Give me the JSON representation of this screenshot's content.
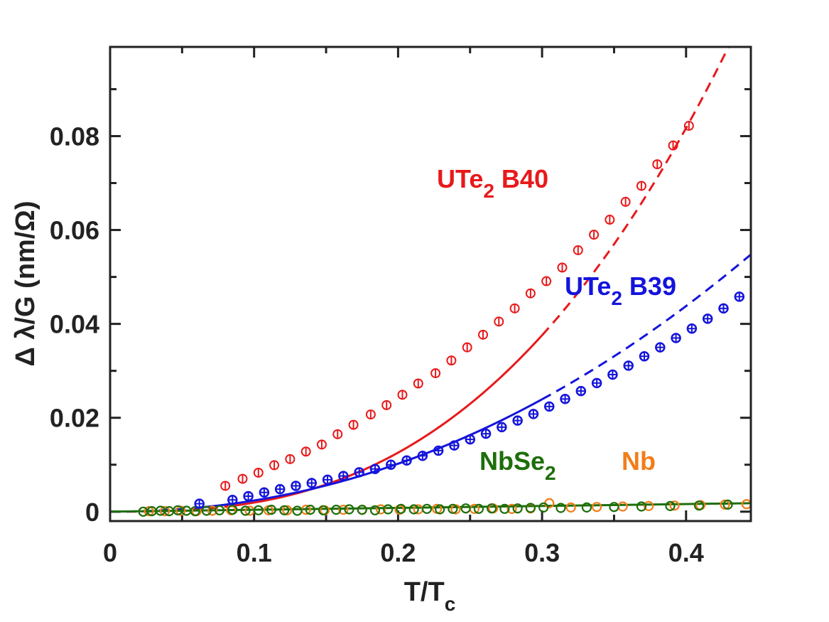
{
  "chart_data": {
    "type": "scatter",
    "title": "",
    "xlabel": {
      "main": "T/T",
      "sub": "c"
    },
    "ylabel": "Δ λ/G (nm/Ω)",
    "xlim": [
      0,
      0.445
    ],
    "ylim": [
      -0.002,
      0.099
    ],
    "xticks": [
      0,
      0.1,
      0.2,
      0.3,
      0.4
    ],
    "xtick_labels": [
      "0",
      "0.1",
      "0.2",
      "0.3",
      "0.4"
    ],
    "yticks": [
      0,
      0.02,
      0.04,
      0.06,
      0.08
    ],
    "ytick_labels": [
      "0",
      "0.02",
      "0.04",
      "0.06",
      "0.08"
    ],
    "grid": false,
    "series": [
      {
        "name": "UTe2 B40",
        "label_main": "UTe",
        "label_sub": "2",
        "label_tail": " B40",
        "color": "#e8191b",
        "marker": "open-circle-errorbar",
        "fit": {
          "type": "power-law",
          "a": 0.97,
          "n": 2.7,
          "style": "dashed"
        },
        "x": [
          0.08,
          0.092,
          0.103,
          0.114,
          0.125,
          0.136,
          0.147,
          0.158,
          0.169,
          0.181,
          0.192,
          0.203,
          0.214,
          0.226,
          0.237,
          0.248,
          0.259,
          0.27,
          0.281,
          0.292,
          0.303,
          0.314,
          0.325,
          0.336,
          0.347,
          0.358,
          0.369,
          0.38,
          0.391,
          0.402
        ],
        "y": [
          0.0055,
          0.007,
          0.0083,
          0.0099,
          0.0112,
          0.0128,
          0.0143,
          0.0165,
          0.0185,
          0.0207,
          0.0227,
          0.0249,
          0.0273,
          0.0295,
          0.0322,
          0.035,
          0.0377,
          0.0405,
          0.0433,
          0.0465,
          0.0491,
          0.052,
          0.0557,
          0.059,
          0.0622,
          0.066,
          0.0694,
          0.074,
          0.078,
          0.0822
        ],
        "err": 0.0008
      },
      {
        "name": "UTe2 B39",
        "label_main": "UTe",
        "label_sub": "2",
        "label_tail": " B39",
        "color": "#1414dc",
        "marker": "open-circle-cross",
        "fit": {
          "type": "power-law",
          "a": 0.3,
          "n": 2.1,
          "style": "solid-then-dashed"
        },
        "x": [
          0.062,
          0.085,
          0.096,
          0.107,
          0.118,
          0.129,
          0.14,
          0.151,
          0.162,
          0.173,
          0.184,
          0.195,
          0.206,
          0.217,
          0.228,
          0.239,
          0.25,
          0.261,
          0.272,
          0.283,
          0.294,
          0.305,
          0.316,
          0.327,
          0.338,
          0.349,
          0.36,
          0.371,
          0.382,
          0.393,
          0.404,
          0.415,
          0.426,
          0.437
        ],
        "y": [
          0.0017,
          0.0025,
          0.0033,
          0.0041,
          0.0048,
          0.0055,
          0.0061,
          0.0068,
          0.0076,
          0.0084,
          0.0091,
          0.01,
          0.0109,
          0.0119,
          0.013,
          0.0141,
          0.0154,
          0.0166,
          0.018,
          0.0194,
          0.0208,
          0.0224,
          0.024,
          0.0257,
          0.0274,
          0.0292,
          0.0311,
          0.0331,
          0.035,
          0.037,
          0.039,
          0.0411,
          0.0433,
          0.0458
        ],
        "err": 0.0005
      },
      {
        "name": "NbSe2",
        "label_main": "NbSe",
        "label_sub": "2",
        "label_tail": "",
        "color": "#1e6e0a",
        "marker": "open-circle",
        "fit": {
          "type": "linear",
          "y0": 0.0,
          "y1": 0.0018,
          "style": "solid"
        },
        "x": [
          0.023,
          0.029,
          0.035,
          0.041,
          0.047,
          0.053,
          0.059,
          0.067,
          0.076,
          0.085,
          0.094,
          0.103,
          0.112,
          0.121,
          0.13,
          0.139,
          0.148,
          0.157,
          0.166,
          0.175,
          0.184,
          0.193,
          0.202,
          0.211,
          0.22,
          0.229,
          0.238,
          0.247,
          0.256,
          0.265,
          0.274,
          0.283,
          0.292,
          0.301,
          0.313,
          0.331,
          0.35,
          0.369,
          0.389,
          0.409,
          0.429
        ],
        "y": [
          0.0,
          0.0001,
          0.0002,
          0.0001,
          0.0003,
          0.0002,
          0.0001,
          0.0002,
          0.0003,
          0.0004,
          0.0002,
          0.0003,
          0.0004,
          0.0003,
          0.0002,
          0.0004,
          0.0003,
          0.0004,
          0.0005,
          0.0004,
          0.0003,
          0.0005,
          0.0006,
          0.0005,
          0.0006,
          0.0005,
          0.0006,
          0.0007,
          0.0006,
          0.0007,
          0.0006,
          0.0007,
          0.0008,
          0.0009,
          0.0008,
          0.0009,
          0.001,
          0.0011,
          0.0012,
          0.0013,
          0.0015
        ]
      },
      {
        "name": "Nb",
        "label_main": "Nb",
        "label_sub": "",
        "label_tail": "",
        "color": "#f27d1a",
        "marker": "open-circle",
        "x": [
          0.027,
          0.038,
          0.049,
          0.06,
          0.071,
          0.084,
          0.097,
          0.11,
          0.123,
          0.136,
          0.149,
          0.162,
          0.175,
          0.188,
          0.201,
          0.214,
          0.227,
          0.24,
          0.253,
          0.266,
          0.279,
          0.292,
          0.305,
          0.32,
          0.338,
          0.356,
          0.374,
          0.392,
          0.41,
          0.427,
          0.442
        ],
        "y": [
          0.0001,
          0.0001,
          0.0002,
          0.0001,
          0.0002,
          0.0003,
          0.0002,
          0.0003,
          0.0003,
          0.0004,
          0.0003,
          0.0004,
          0.0004,
          0.0005,
          0.0004,
          0.0005,
          0.0006,
          0.0005,
          0.0006,
          0.0007,
          0.0006,
          0.0007,
          0.0018,
          0.0009,
          0.001,
          0.0011,
          0.0012,
          0.0013,
          0.0014,
          0.0015,
          0.0016
        ]
      }
    ]
  }
}
